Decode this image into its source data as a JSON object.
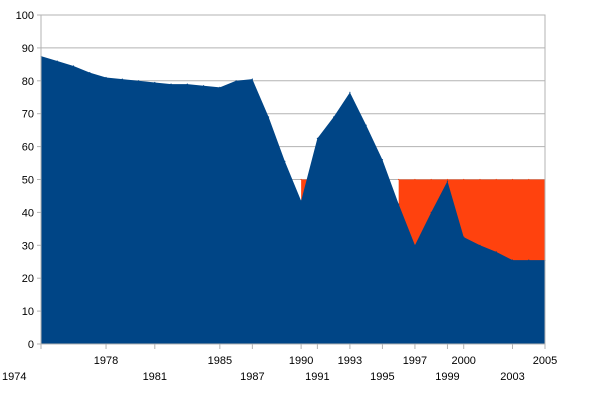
{
  "chart_data": {
    "type": "area",
    "title": "",
    "xlabel": "",
    "ylabel": "",
    "ylim": [
      0,
      100
    ],
    "xlim": [
      1974,
      2005
    ],
    "y_ticks": [
      "0",
      "10",
      "20",
      "30",
      "40",
      "50",
      "60",
      "70",
      "80",
      "90",
      "100"
    ],
    "x_ticks_row1": [
      "1978",
      "1985",
      "1990",
      "1993",
      "1997",
      "2000",
      "2005"
    ],
    "x_ticks_row2": [
      "1974",
      "1981",
      "1987",
      "1991",
      "1995",
      "1999",
      "2003"
    ],
    "grid": true,
    "legend": "none",
    "series": [
      {
        "color": "#004586",
        "x": [
          1974,
          1975,
          1976,
          1977,
          1978,
          1979,
          1980,
          1981,
          1982,
          1983,
          1984,
          1985,
          1986,
          1987,
          1988,
          1989,
          1990,
          1991,
          1992,
          1993,
          1994,
          1995,
          1996,
          1997,
          1998,
          1999,
          2000,
          2001,
          2002,
          2003,
          2004,
          2005
        ],
        "values": [
          87.5,
          86,
          84.5,
          82.5,
          81,
          80.5,
          80,
          79.5,
          79,
          79,
          78.5,
          78,
          80,
          80.5,
          69,
          55.5,
          43.5,
          62.5,
          69,
          76.5,
          66.5,
          56,
          42.5,
          30,
          40,
          49.5,
          32.5,
          30,
          28,
          25.5,
          25.5,
          25.5
        ]
      },
      {
        "color": "#ff420e",
        "x": [
          1974,
          1975,
          1976,
          1977,
          1978,
          1979,
          1980,
          1981,
          1982,
          1983,
          1984,
          1985,
          1986,
          1987,
          1988,
          1989,
          1990,
          1991,
          1992,
          1993,
          1994,
          1995,
          1996,
          1997,
          1998,
          1999,
          2000,
          2001,
          2002,
          2003,
          2004,
          2005
        ],
        "values": [
          null,
          null,
          null,
          null,
          null,
          null,
          null,
          null,
          null,
          null,
          null,
          null,
          null,
          null,
          null,
          null,
          50,
          50,
          null,
          null,
          null,
          null,
          50,
          50,
          50,
          50,
          50,
          50,
          50,
          50,
          50,
          50
        ]
      }
    ]
  }
}
